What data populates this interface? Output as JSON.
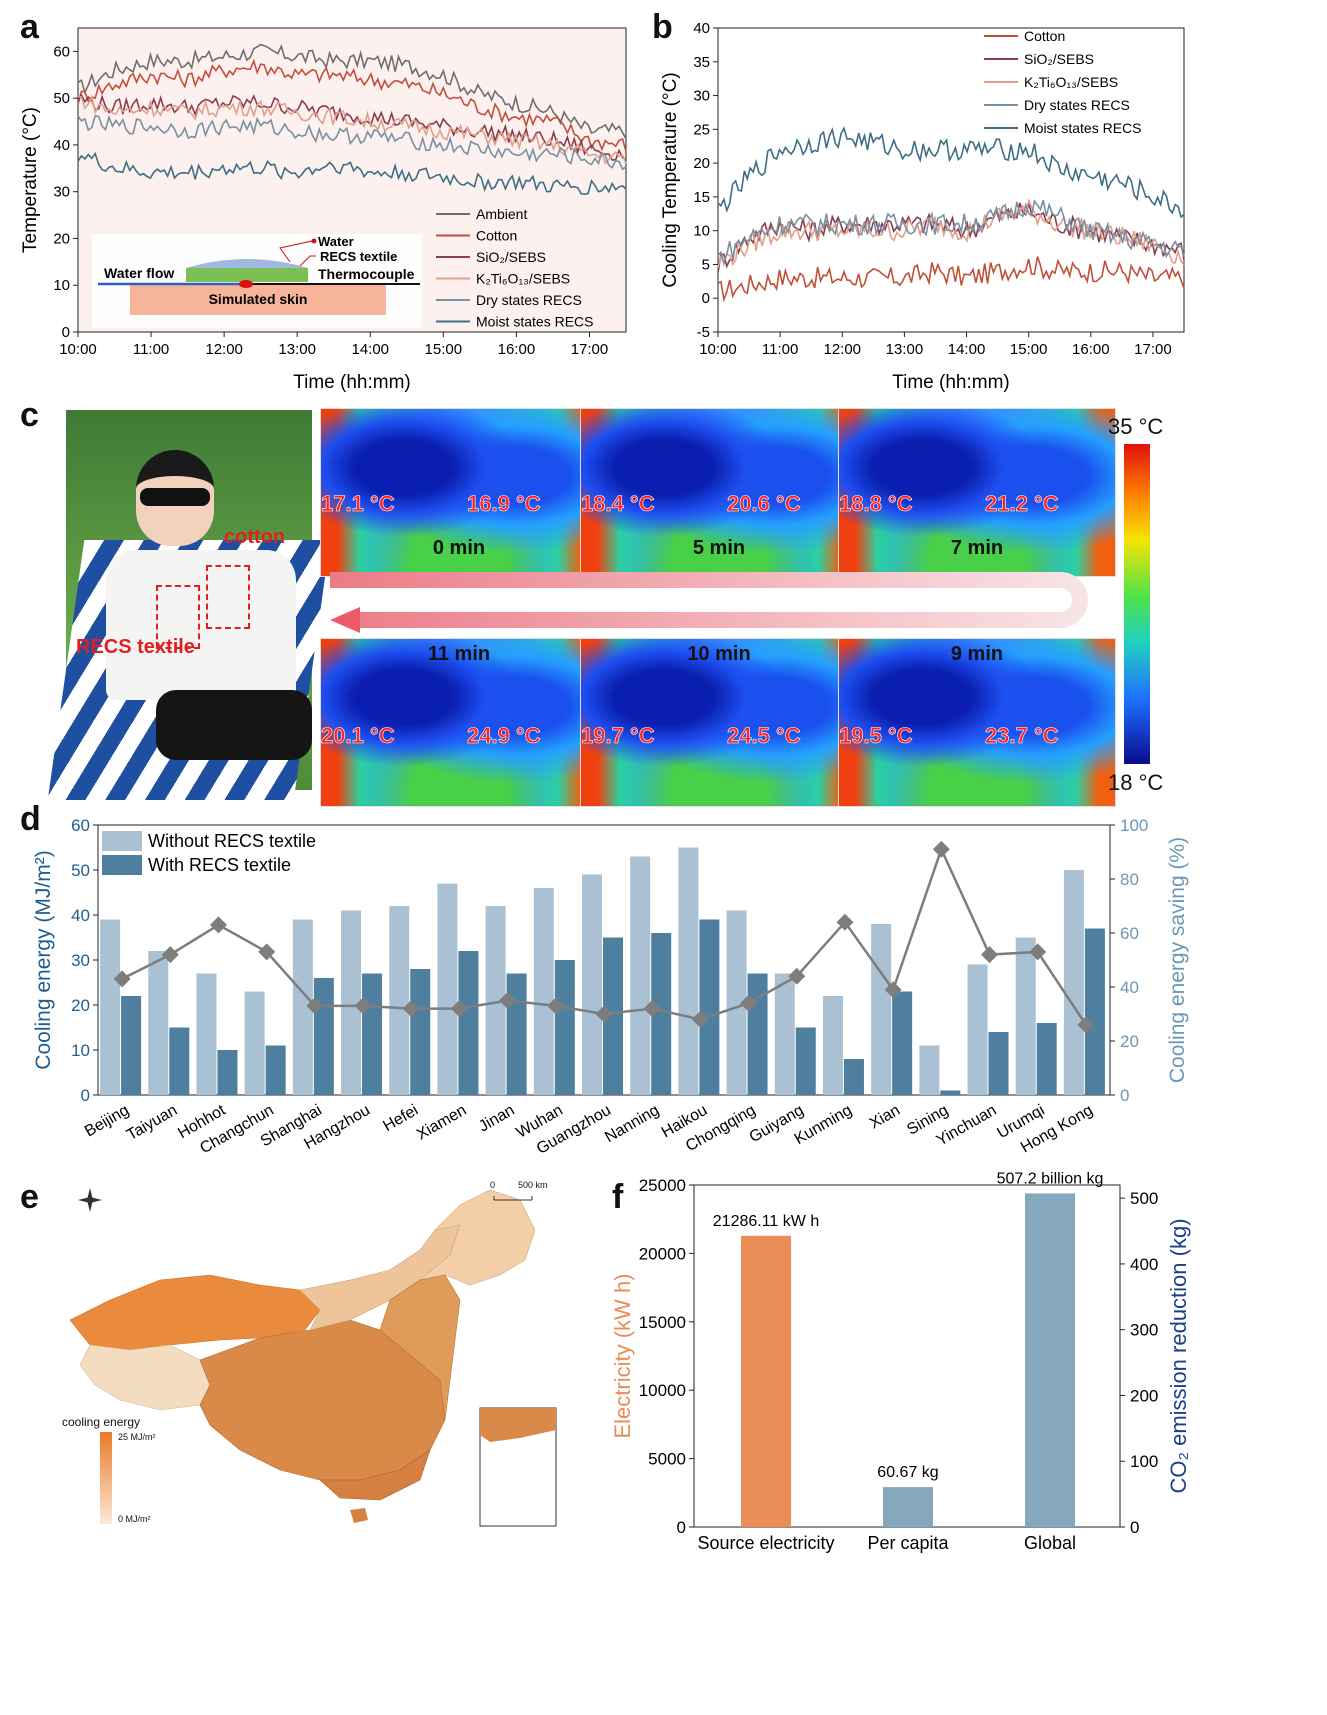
{
  "panels": {
    "a": "a",
    "b": "b",
    "c": "c",
    "d": "d",
    "e": "e",
    "f": "f"
  },
  "colors": {
    "ambient": "#6e6e6e",
    "cotton": "#c0503a",
    "sio2": "#8a3c4e",
    "k2ti": "#e0a08a",
    "dry": "#7a8fa0",
    "moist": "#3d6e86",
    "bar_light": "#a9c1d3",
    "bar_dark": "#4f7f9e",
    "orange": "#e98c56",
    "steel": "#86a8bf",
    "navy": "#1c3f8a"
  },
  "chart_data": [
    {
      "id": "a",
      "type": "line",
      "xlabel": "Time (hh:mm)",
      "ylabel": "Temperature (°C)",
      "xlim": [
        10.0,
        17.5
      ],
      "ylim": [
        0,
        65
      ],
      "x_ticks": [
        "10:00",
        "11:00",
        "12:00",
        "13:00",
        "14:00",
        "15:00",
        "16:00",
        "17:00"
      ],
      "y_ticks": [
        "0",
        "10",
        "20",
        "30",
        "40",
        "50",
        "60"
      ],
      "series": [
        {
          "name": "Ambient",
          "key": "ambient",
          "x": [
            10,
            10.5,
            11,
            11.5,
            12,
            12.5,
            13,
            13.5,
            14,
            14.5,
            15,
            15.5,
            16,
            16.5,
            17,
            17.5
          ],
          "values": [
            52,
            56,
            58,
            58,
            59,
            60,
            59,
            58,
            58,
            57,
            55,
            51,
            49,
            47,
            43,
            43
          ]
        },
        {
          "name": "Cotton",
          "key": "cotton",
          "x": [
            10,
            10.5,
            11,
            11.5,
            12,
            12.5,
            13,
            13.5,
            14,
            14.5,
            15,
            15.5,
            16,
            16.5,
            17,
            17.5
          ],
          "values": [
            50,
            53,
            55,
            54,
            56,
            57,
            55,
            55,
            54,
            53,
            51,
            48,
            46,
            45,
            41,
            40
          ]
        },
        {
          "name": "SiO2/SEBS",
          "key": "sio2",
          "x": [
            10,
            10.5,
            11,
            11.5,
            12,
            12.5,
            13,
            13.5,
            14,
            14.5,
            15,
            15.5,
            16,
            16.5,
            17,
            17.5
          ],
          "values": [
            50,
            48,
            49,
            48,
            49,
            49,
            48,
            47,
            46,
            45,
            44,
            43,
            42,
            41,
            39,
            38
          ]
        },
        {
          "name": "K2Ti6O13/SEBS",
          "key": "k2ti",
          "x": [
            10,
            10.5,
            11,
            11.5,
            12,
            12.5,
            13,
            13.5,
            14,
            14.5,
            15,
            15.5,
            16,
            16.5,
            17,
            17.5
          ],
          "values": [
            50,
            47,
            48,
            47,
            48,
            48,
            47,
            46,
            45,
            44,
            43,
            42,
            41,
            40,
            38,
            37
          ]
        },
        {
          "name": "Dry states RECS",
          "key": "dry",
          "x": [
            10,
            10.5,
            11,
            11.5,
            12,
            12.5,
            13,
            13.5,
            14,
            14.5,
            15,
            15.5,
            16,
            16.5,
            17,
            17.5
          ],
          "values": [
            45,
            44,
            44,
            43,
            44,
            44,
            43,
            42,
            42,
            41,
            40,
            39,
            38,
            38,
            37,
            36
          ]
        },
        {
          "name": "Moist states RECS",
          "key": "moist",
          "x": [
            10,
            10.5,
            11,
            11.5,
            12,
            12.5,
            13,
            13.5,
            14,
            14.5,
            15,
            15.5,
            16,
            16.5,
            17,
            17.5
          ],
          "values": [
            38,
            35,
            34,
            34,
            35,
            35,
            34,
            36,
            34,
            34,
            33,
            32,
            32,
            31,
            31,
            31
          ]
        }
      ],
      "legend": [
        "Ambient",
        "Cotton",
        "SiO₂/SEBS",
        "K₂Ti₆O₁₃/SEBS",
        "Dry states RECS",
        "Moist states RECS"
      ],
      "inset": {
        "water": "Water",
        "recs": "RECS textile",
        "thermo": "Thermocouple",
        "flow": "Water flow",
        "skin": "Simulated skin"
      }
    },
    {
      "id": "b",
      "type": "line",
      "xlabel": "Time (hh:mm)",
      "ylabel": "Cooling Temperature (°C)",
      "xlim": [
        10.0,
        17.5
      ],
      "ylim": [
        -5,
        40
      ],
      "x_ticks": [
        "10:00",
        "11:00",
        "12:00",
        "13:00",
        "14:00",
        "15:00",
        "16:00",
        "17:00"
      ],
      "y_ticks": [
        "-5",
        "0",
        "5",
        "10",
        "15",
        "20",
        "25",
        "30",
        "35",
        "40"
      ],
      "series": [
        {
          "name": "Cotton",
          "key": "cotton",
          "x": [
            10,
            10.5,
            11,
            11.5,
            12,
            12.5,
            13,
            13.5,
            14,
            14.5,
            15,
            15.5,
            16,
            16.5,
            17,
            17.5
          ],
          "values": [
            1,
            2,
            3,
            3,
            3,
            3,
            3,
            4,
            3,
            4,
            5,
            4,
            4,
            4,
            3,
            3
          ]
        },
        {
          "name": "SiO2/SEBS",
          "key": "sio2",
          "x": [
            10,
            10.5,
            11,
            11.5,
            12,
            12.5,
            13,
            13.5,
            14,
            14.5,
            15,
            15.5,
            16,
            16.5,
            17,
            17.5
          ],
          "values": [
            5,
            9,
            11,
            10,
            11,
            11,
            11,
            11,
            10,
            12,
            13,
            11,
            10,
            9,
            8,
            7
          ]
        },
        {
          "name": "K2Ti6O13/SEBS",
          "key": "k2ti",
          "x": [
            10,
            10.5,
            11,
            11.5,
            12,
            12.5,
            13,
            13.5,
            14,
            14.5,
            15,
            15.5,
            16,
            16.5,
            17,
            17.5
          ],
          "values": [
            5,
            8,
            10,
            10,
            10,
            10,
            10,
            11,
            10,
            12,
            13,
            11,
            10,
            9,
            8,
            6
          ]
        },
        {
          "name": "Dry states RECS",
          "key": "dry",
          "x": [
            10,
            10.5,
            11,
            11.5,
            12,
            12.5,
            13,
            13.5,
            14,
            14.5,
            15,
            15.5,
            16,
            16.5,
            17,
            17.5
          ],
          "values": [
            6,
            9,
            11,
            11,
            11,
            11,
            11,
            11,
            11,
            12,
            14,
            12,
            10,
            9,
            8,
            7
          ]
        },
        {
          "name": "Moist states RECS",
          "key": "moist",
          "x": [
            10,
            10.5,
            11,
            11.5,
            12,
            12.5,
            13,
            13.5,
            14,
            14.5,
            15,
            15.5,
            16,
            16.5,
            17,
            17.5
          ],
          "values": [
            13,
            18,
            22,
            23,
            24,
            23,
            22,
            22,
            22,
            22,
            22,
            19,
            18,
            17,
            15,
            13
          ]
        }
      ],
      "legend": [
        "Cotton",
        "SiO₂/SEBS",
        "K₂Ti₆O₁₃/SEBS",
        "Dry states RECS",
        "Moist states RECS"
      ]
    },
    {
      "id": "d",
      "type": "bar",
      "ylabel": "Cooling energy (MJ/m²)",
      "y2label": "Cooling energy saving (%)",
      "ylim": [
        0,
        60
      ],
      "y2lim": [
        0,
        100
      ],
      "y_ticks": [
        "0",
        "10",
        "20",
        "30",
        "40",
        "50",
        "60"
      ],
      "y2_ticks": [
        "0",
        "20",
        "40",
        "60",
        "80",
        "100"
      ],
      "categories": [
        "Beijing",
        "Taiyuan",
        "Hohhot",
        "Changchun",
        "Shanghai",
        "Hangzhou",
        "Hefei",
        "Xiamen",
        "Jinan",
        "Wuhan",
        "Guangzhou",
        "Nanning",
        "Haikou",
        "Chongqing",
        "Guiyang",
        "Kunming",
        "Xian",
        "Sining",
        "Yinchuan",
        "Urumqi",
        "Hong Kong"
      ],
      "series": [
        {
          "name": "Without RECS textile",
          "key": "bar_light",
          "values": [
            39,
            32,
            27,
            23,
            39,
            41,
            42,
            47,
            42,
            46,
            49,
            53,
            55,
            41,
            27,
            22,
            38,
            11,
            29,
            35,
            50
          ]
        },
        {
          "name": "With RECS textile",
          "key": "bar_dark",
          "values": [
            22,
            15,
            10,
            11,
            26,
            27,
            28,
            32,
            27,
            30,
            35,
            36,
            39,
            27,
            15,
            8,
            23,
            1,
            14,
            16,
            37
          ]
        },
        {
          "name": "Cooling energy saving",
          "key": "saving",
          "axis": "right",
          "values": [
            43,
            52,
            63,
            53,
            33,
            33,
            32,
            32,
            35,
            33,
            30,
            32,
            28,
            34,
            44,
            64,
            39,
            91,
            52,
            53,
            26
          ]
        }
      ],
      "legend": [
        "Without RECS textile",
        "With RECS textile"
      ]
    },
    {
      "id": "f",
      "type": "bar",
      "ylabel": "Electricity (kW h)",
      "y2label": "CO₂ emission reduction (kg)",
      "ylim": [
        0,
        25000
      ],
      "y2lim": [
        0,
        520
      ],
      "y_ticks": [
        "0",
        "5000",
        "10000",
        "15000",
        "20000",
        "25000"
      ],
      "y2_ticks": [
        "0",
        "100",
        "200",
        "300",
        "400",
        "500"
      ],
      "categories": [
        "Source electricity",
        "Per capita",
        "Global"
      ],
      "bars": [
        {
          "category": "Source electricity",
          "axis": "left",
          "value": 21286.11,
          "label": "21286.11 kW h",
          "key": "orange"
        },
        {
          "category": "Per capita",
          "axis": "right",
          "value": 60.67,
          "label": "60.67 kg",
          "key": "steel"
        },
        {
          "category": "Global",
          "axis": "right",
          "value": 507.2,
          "label": "507.2 billion kg",
          "key": "steel"
        }
      ]
    }
  ],
  "thermal": {
    "scale_max": "35 °C",
    "scale_min": "18 °C",
    "frames": [
      {
        "time": "0 min",
        "left": "17.1 °C",
        "right": "16.9 °C"
      },
      {
        "time": "5 min",
        "left": "18.4 °C",
        "right": "20.6 °C"
      },
      {
        "time": "7 min",
        "left": "18.8 °C",
        "right": "21.2 °C"
      },
      {
        "time": "11 min",
        "left": "20.1 °C",
        "right": "24.9 °C"
      },
      {
        "time": "10 min",
        "left": "19.7 °C",
        "right": "24.5 °C"
      },
      {
        "time": "9 min",
        "left": "19.5 °C",
        "right": "23.7 °C"
      }
    ],
    "label_cotton": "cotton",
    "label_recs": "RECS textile"
  },
  "map": {
    "scale": "0",
    "scale_km": "500 km",
    "legend_title": "cooling energy",
    "legend_max": "25 MJ/m²",
    "legend_min": "0 MJ/m²"
  }
}
